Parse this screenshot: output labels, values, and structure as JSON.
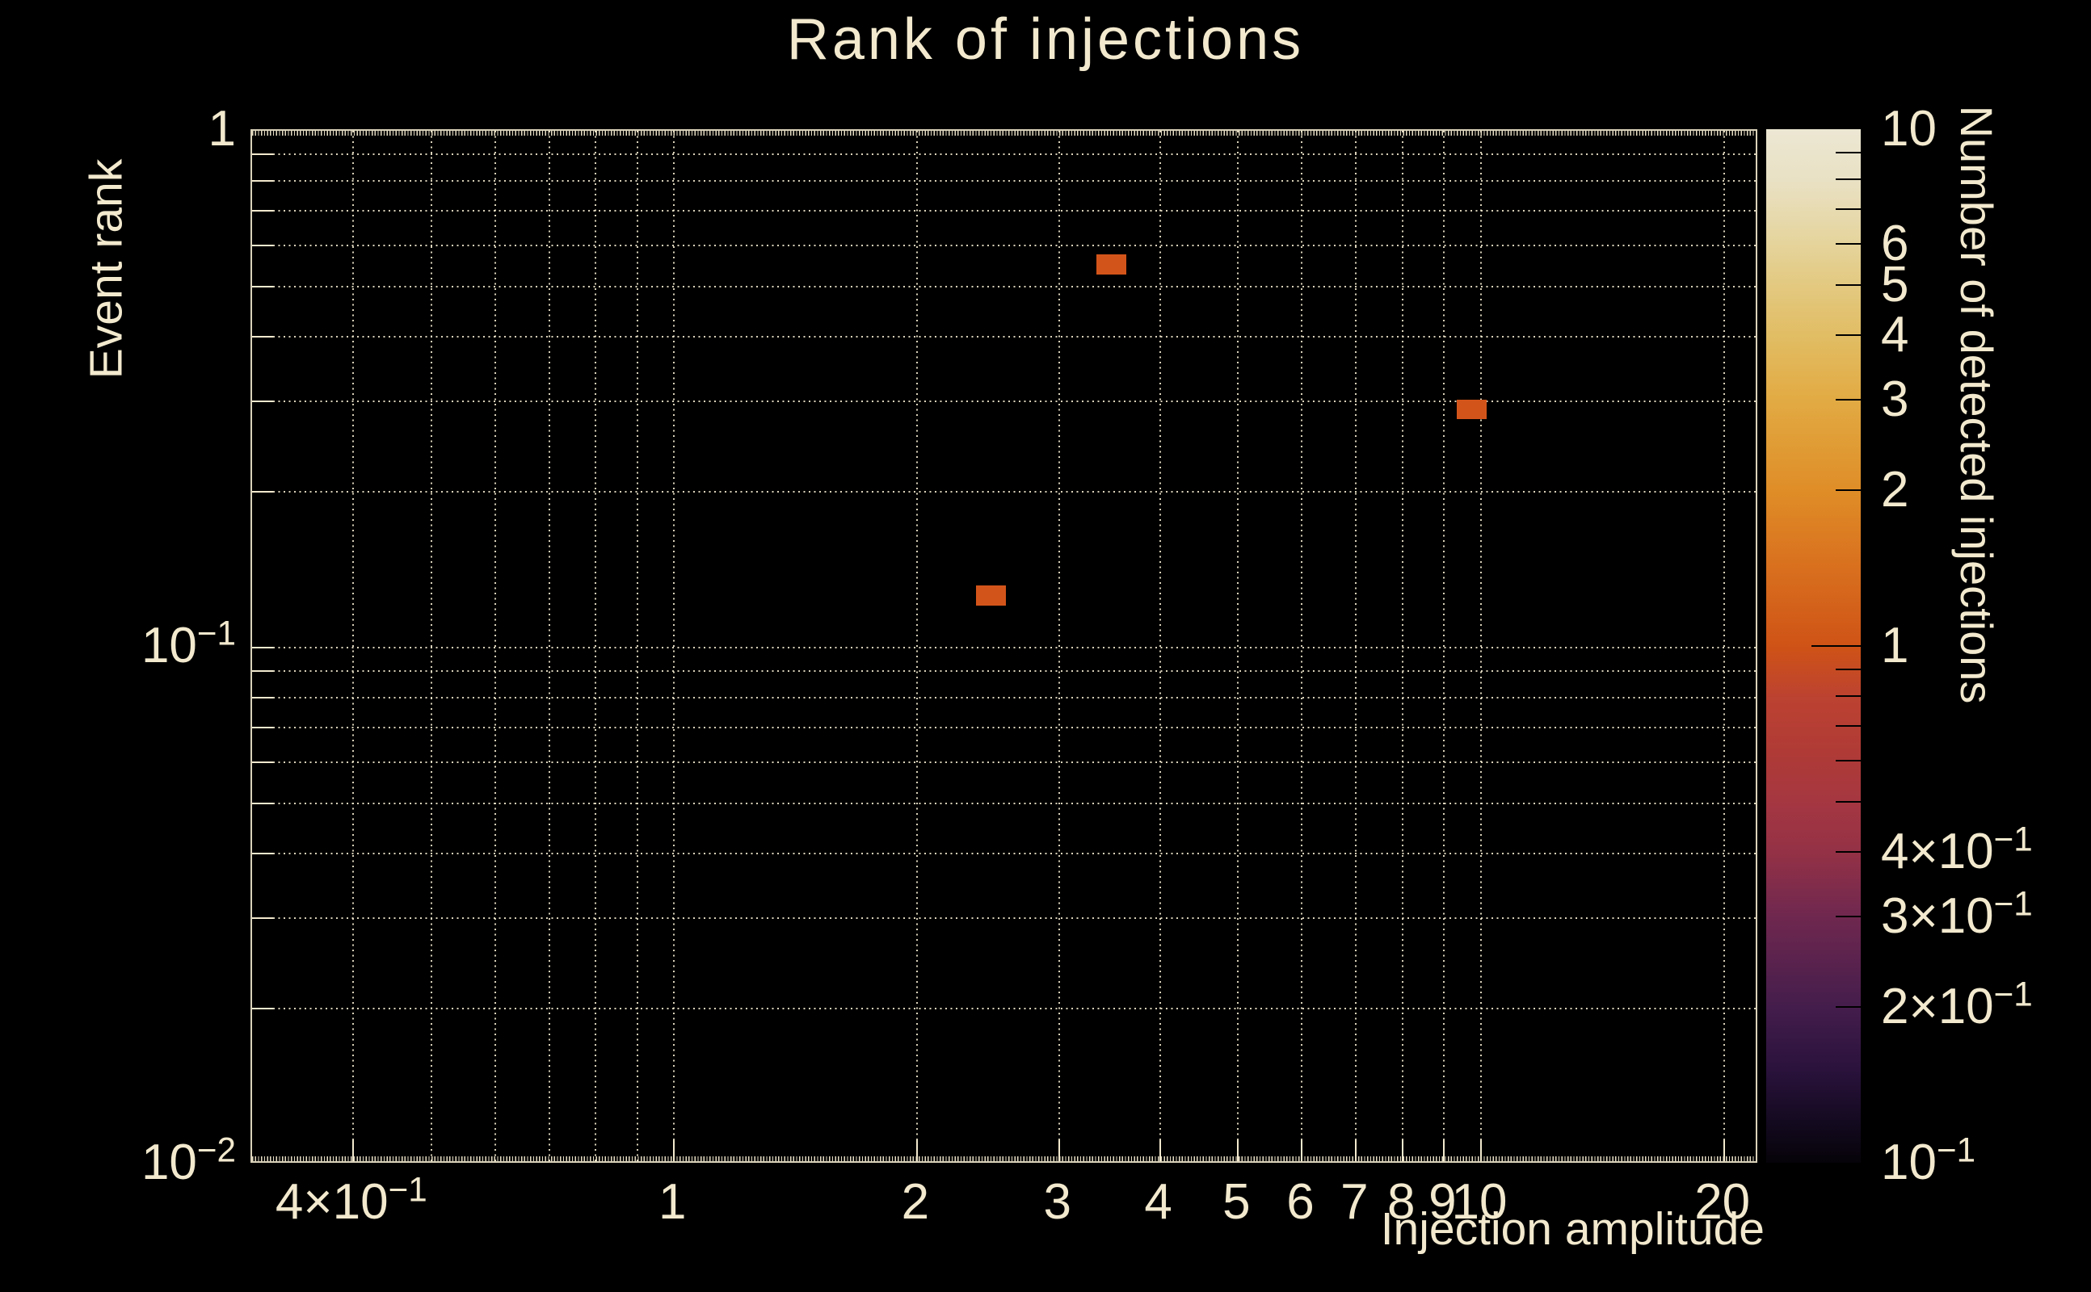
{
  "title": "Rank of injections",
  "colors": {
    "background": "#000000",
    "text": "#f2e9ce",
    "grid": "#f2e9ce",
    "marker": "#d3541a",
    "colorbar_tick": "#000000"
  },
  "chart_data": {
    "type": "heatmap",
    "title": "Rank of injections",
    "xlabel": "Injection amplitude",
    "ylabel": "Event rank",
    "zlabel": "Number of detected injections",
    "xscale": "log",
    "yscale": "log",
    "zscale": "log",
    "xlim": [
      0.3,
      22.1
    ],
    "ylim": [
      0.01,
      1
    ],
    "zlim": [
      0.1,
      10
    ],
    "grid": "dotted",
    "legend_position": "right-colorbar",
    "x_gridlines": [
      0.4,
      0.5,
      0.6,
      0.7,
      0.8,
      0.9,
      1,
      2,
      3,
      4,
      5,
      6,
      7,
      8,
      9,
      10,
      20
    ],
    "x_ticks": [
      {
        "v": 0.4,
        "t": "4×10",
        "s": "−1"
      },
      {
        "v": 1,
        "t": "1"
      },
      {
        "v": 2,
        "t": "2"
      },
      {
        "v": 3,
        "t": "3"
      },
      {
        "v": 4,
        "t": "4"
      },
      {
        "v": 5,
        "t": "5"
      },
      {
        "v": 6,
        "t": "6"
      },
      {
        "v": 7,
        "t": "7"
      },
      {
        "v": 8,
        "t": "8"
      },
      {
        "v": 9,
        "t": "9"
      },
      {
        "v": 10,
        "t": "10"
      },
      {
        "v": 20,
        "t": "20"
      }
    ],
    "y_gridlines": [
      0.9,
      0.8,
      0.7,
      0.6,
      0.5,
      0.4,
      0.3,
      0.2,
      0.1,
      0.09,
      0.08,
      0.07,
      0.06,
      0.05,
      0.04,
      0.03,
      0.02
    ],
    "y_ticks": [
      {
        "v": 1,
        "t": "1"
      },
      {
        "v": 0.1,
        "t": "10",
        "s": "−1"
      },
      {
        "v": 0.01,
        "t": "10",
        "s": "−2"
      }
    ],
    "z_ticks": [
      {
        "v": 10,
        "t": "10"
      },
      {
        "v": 6,
        "t": "6"
      },
      {
        "v": 5,
        "t": "5"
      },
      {
        "v": 4,
        "t": "4"
      },
      {
        "v": 3,
        "t": "3"
      },
      {
        "v": 2,
        "t": "2"
      },
      {
        "v": 1,
        "t": "1",
        "major": true
      },
      {
        "v": 0.4,
        "t": "4×10",
        "s": "−1"
      },
      {
        "v": 0.3,
        "t": "3×10",
        "s": "−1"
      },
      {
        "v": 0.2,
        "t": "2×10",
        "s": "−1"
      },
      {
        "v": 0.1,
        "t": "10",
        "s": "−1"
      }
    ],
    "z_minor_ticks": [
      9,
      8,
      7,
      0.9,
      0.8,
      0.7,
      0.6,
      0.5
    ],
    "colormap_stops": [
      {
        "pos": 0,
        "color": "#ece7d3"
      },
      {
        "pos": 5,
        "color": "#e9e1c4"
      },
      {
        "pos": 11,
        "color": "#e5d49c"
      },
      {
        "pos": 15,
        "color": "#e3c981"
      },
      {
        "pos": 20,
        "color": "#e1bd64"
      },
      {
        "pos": 26,
        "color": "#e2ab44"
      },
      {
        "pos": 35,
        "color": "#df8d27"
      },
      {
        "pos": 41,
        "color": "#da7520"
      },
      {
        "pos": 50,
        "color": "#cf5316"
      },
      {
        "pos": 55,
        "color": "#bc4231"
      },
      {
        "pos": 61,
        "color": "#ae3a37"
      },
      {
        "pos": 65,
        "color": "#a53741"
      },
      {
        "pos": 70,
        "color": "#943146"
      },
      {
        "pos": 76,
        "color": "#70284f"
      },
      {
        "pos": 85,
        "color": "#441d4c"
      },
      {
        "pos": 91,
        "color": "#2a123c"
      },
      {
        "pos": 96,
        "color": "#140a20"
      },
      {
        "pos": 100,
        "color": "#060309"
      }
    ],
    "points": [
      {
        "x": 3.48,
        "y": 0.552,
        "count": 1
      },
      {
        "x": 9.73,
        "y": 0.289,
        "count": 1
      },
      {
        "x": 2.47,
        "y": 0.126,
        "count": 1
      }
    ],
    "bin_width_dex": 0.037,
    "bin_height_dex": 0.039
  }
}
